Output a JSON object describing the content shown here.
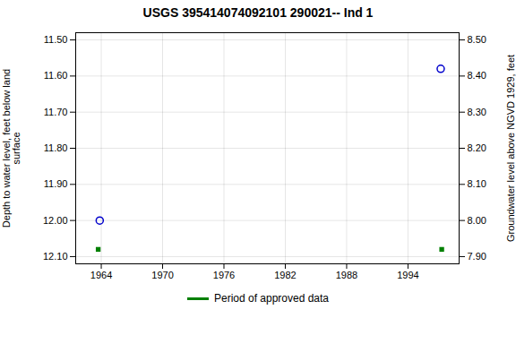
{
  "chart_data": {
    "type": "scatter",
    "title": "USGS 395414074092101 290021-- Ind 1",
    "ylabel": "Depth to water level, feet below land\nsurface",
    "y2label": "Groundwater level above NGVD 1929, feet",
    "series": [
      {
        "color": "#0000cc",
        "marker": "open_circle",
        "x": [
          1963.85,
          1997.2
        ],
        "values": [
          12.0,
          11.58
        ]
      },
      {
        "name": "Period of approved data",
        "color": "#008000",
        "marker": "square",
        "x": [
          1963.7,
          1997.3
        ],
        "values": [
          12.08,
          12.08
        ]
      }
    ],
    "xlim": [
      1961.5,
      1999
    ],
    "xticks": [
      1964,
      1970,
      1976,
      1982,
      1988,
      1994
    ],
    "ylim": [
      12.12,
      11.48
    ],
    "yticks": [
      {
        "value": 11.5,
        "label": "11.50"
      },
      {
        "value": 11.6,
        "label": "11.60"
      },
      {
        "value": 11.7,
        "label": "11.70"
      },
      {
        "value": 11.8,
        "label": "11.80"
      },
      {
        "value": 11.9,
        "label": "11.90"
      },
      {
        "value": 12.0,
        "label": "12.00"
      },
      {
        "value": 12.1,
        "label": "12.10"
      }
    ],
    "y2lim": [
      7.88,
      8.52
    ],
    "y2ticks": [
      {
        "value": 8.5,
        "label": "8.50"
      },
      {
        "value": 8.4,
        "label": "8.40"
      },
      {
        "value": 8.3,
        "label": "8.30"
      },
      {
        "value": 8.2,
        "label": "8.20"
      },
      {
        "value": 8.1,
        "label": "8.10"
      },
      {
        "value": 8.0,
        "label": "8.00"
      },
      {
        "value": 7.9,
        "label": "7.90"
      }
    ],
    "grid": true,
    "legend": "bottom"
  }
}
